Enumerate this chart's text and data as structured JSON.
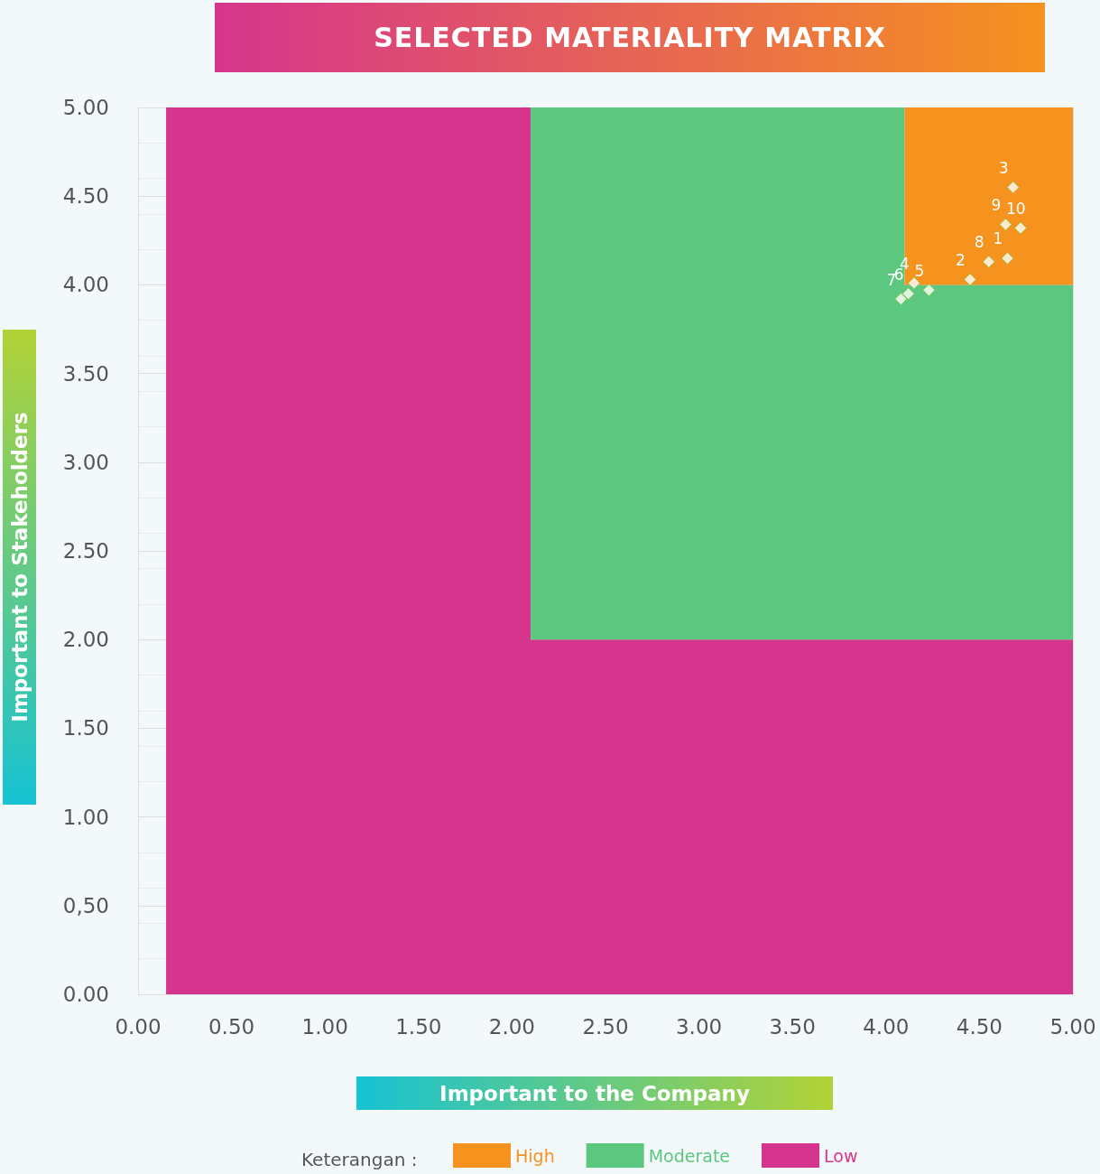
{
  "chart_data": {
    "type": "scatter",
    "title": "SELECTED MATERIALITY MATRIX",
    "xlabel": "Important to the Company",
    "ylabel": "Important to Stakeholders",
    "legend_title": "Keterangan :",
    "series": [
      {
        "type": "area",
        "name": "Low",
        "color": "#d6358d",
        "marker": "none",
        "x": [
          0.15,
          2.1,
          2.1,
          4.1,
          4.1,
          5
        ],
        "values": [
          5,
          5,
          2,
          2,
          2,
          2
        ]
      },
      {
        "type": "area",
        "name": "Moderate",
        "color": "#5cc77e",
        "marker": "none",
        "x": [
          0.15,
          2.1,
          2.1,
          4.1,
          4.1,
          5
        ],
        "values": [
          0,
          0,
          3,
          3,
          2,
          2
        ]
      },
      {
        "type": "area",
        "name": "High",
        "color": "#f6921e",
        "marker": "none",
        "x": [
          0.15,
          2.1,
          2.1,
          4.1,
          4.1,
          5
        ],
        "values": [
          0,
          0,
          0,
          0,
          1,
          1
        ]
      },
      {
        "color": "#ffffff",
        "marker": "diamond",
        "x": [
          4.68,
          4.64,
          4.72,
          4.65,
          4.55,
          4.45,
          4.23,
          4.15,
          4.12,
          4.08
        ],
        "values": [
          4.55,
          4.34,
          4.32,
          4.15,
          4.13,
          4.03,
          3.97,
          4.01,
          3.95,
          3.92
        ]
      }
    ],
    "annotations": [
      {
        "text": "3",
        "x": 4.68,
        "y": 4.55
      },
      {
        "text": "9",
        "x": 4.64,
        "y": 4.34
      },
      {
        "text": "10",
        "x": 4.72,
        "y": 4.32
      },
      {
        "text": "1",
        "x": 4.65,
        "y": 4.15
      },
      {
        "text": "8",
        "x": 4.55,
        "y": 4.13
      },
      {
        "text": "2",
        "x": 4.45,
        "y": 4.03
      },
      {
        "text": "5",
        "x": 4.23,
        "y": 3.97
      },
      {
        "text": "4",
        "x": 4.15,
        "y": 4.01
      },
      {
        "text": "6",
        "x": 4.12,
        "y": 3.95
      },
      {
        "text": "7",
        "x": 4.08,
        "y": 3.92
      }
    ],
    "xlim": [
      0,
      5
    ],
    "ylim": [
      0,
      5
    ],
    "xticks": [
      {
        "value": 0,
        "label": "0.00"
      },
      {
        "value": 0.5,
        "label": "0.50"
      },
      {
        "value": 1,
        "label": "1.00"
      },
      {
        "value": 1.5,
        "label": "1.50"
      },
      {
        "value": 2,
        "label": "2.00"
      },
      {
        "value": 2.5,
        "label": "2.50"
      },
      {
        "value": 3,
        "label": "3.00"
      },
      {
        "value": 3.5,
        "label": "3.50"
      },
      {
        "value": 4,
        "label": "4.00"
      },
      {
        "value": 4.5,
        "label": "4.50"
      },
      {
        "value": 5,
        "label": "5.00"
      }
    ],
    "yticks": [
      {
        "value": 0,
        "label": "0.00"
      },
      {
        "value": 0.5,
        "label": "0,50"
      },
      {
        "value": 1,
        "label": "1.00"
      },
      {
        "value": 1.5,
        "label": "1.50"
      },
      {
        "value": 2,
        "label": "2.00"
      },
      {
        "value": 2.5,
        "label": "2.50"
      },
      {
        "value": 3,
        "label": "3.00"
      },
      {
        "value": 3.5,
        "label": "3.50"
      },
      {
        "value": 4,
        "label": "4.00"
      },
      {
        "value": 4.5,
        "label": "4.50"
      },
      {
        "value": 5,
        "label": "5.00"
      }
    ],
    "grid": true,
    "legend": "bottom",
    "stacked": true
  }
}
